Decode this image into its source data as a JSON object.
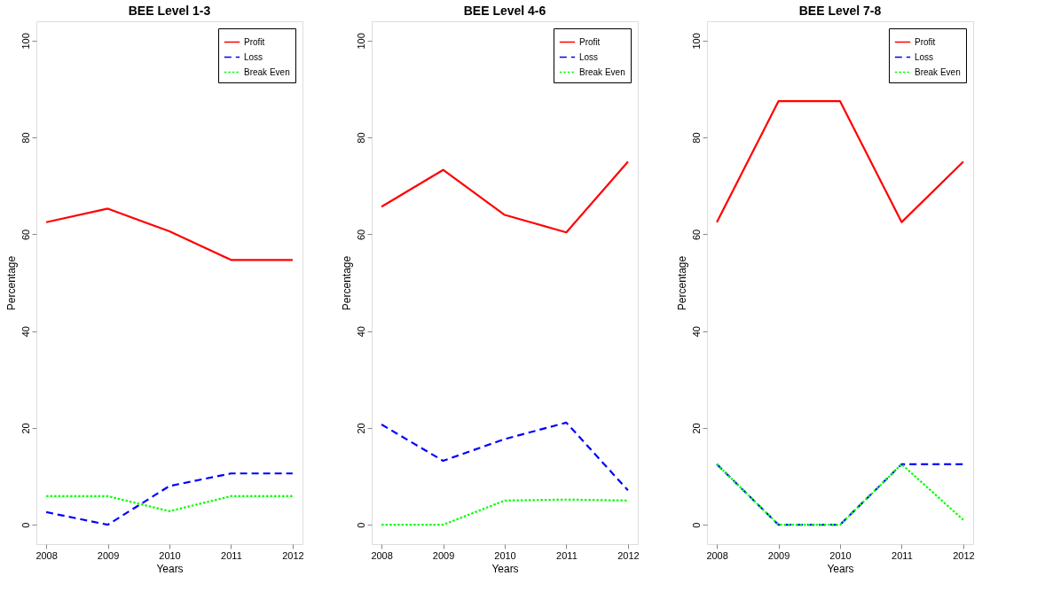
{
  "chart_data": [
    {
      "type": "line",
      "title": "BEE Level 1-3",
      "xlabel": "Years",
      "ylabel": "Percentage",
      "x": [
        2008,
        2009,
        2010,
        2011,
        2012
      ],
      "xlim": [
        2007.84,
        2012.16
      ],
      "ylim": [
        -4,
        104
      ],
      "xticks": [
        2008,
        2009,
        2010,
        2011,
        2012
      ],
      "yticks": [
        0,
        20,
        40,
        60,
        80,
        100
      ],
      "legend": "top right",
      "grid": false,
      "series": [
        {
          "name": "Profit",
          "color": "#ff0000",
          "line_style": "solid",
          "values": [
            62.5,
            65.3,
            60.6,
            54.7,
            54.7
          ]
        },
        {
          "name": "Loss",
          "color": "#0000ff",
          "line_style": "dashed",
          "values": [
            2.6,
            0,
            8.0,
            10.6,
            10.6
          ]
        },
        {
          "name": "Break Even",
          "color": "#00ff00",
          "line_style": "dotted",
          "values": [
            5.9,
            5.9,
            2.8,
            5.9,
            5.9
          ]
        }
      ]
    },
    {
      "type": "line",
      "title": "BEE Level 4-6",
      "xlabel": "Years",
      "ylabel": "Percentage",
      "x": [
        2008,
        2009,
        2010,
        2011,
        2012
      ],
      "xlim": [
        2007.84,
        2012.16
      ],
      "ylim": [
        -4,
        104
      ],
      "xticks": [
        2008,
        2009,
        2010,
        2011,
        2012
      ],
      "yticks": [
        0,
        20,
        40,
        60,
        80,
        100
      ],
      "legend": "top right",
      "grid": false,
      "series": [
        {
          "name": "Profit",
          "color": "#ff0000",
          "line_style": "solid",
          "values": [
            65.7,
            73.3,
            64.0,
            60.4,
            75.0
          ]
        },
        {
          "name": "Loss",
          "color": "#0000ff",
          "line_style": "dashed",
          "values": [
            20.7,
            13.2,
            17.7,
            21.1,
            7.1
          ]
        },
        {
          "name": "Break Even",
          "color": "#00ff00",
          "line_style": "dotted",
          "values": [
            0,
            0,
            5.0,
            5.2,
            5.0
          ]
        }
      ]
    },
    {
      "type": "line",
      "title": "BEE Level 7-8",
      "xlabel": "Years",
      "ylabel": "Percentage",
      "x": [
        2008,
        2009,
        2010,
        2011,
        2012
      ],
      "xlim": [
        2007.84,
        2012.16
      ],
      "ylim": [
        -4,
        104
      ],
      "xticks": [
        2008,
        2009,
        2010,
        2011,
        2012
      ],
      "yticks": [
        0,
        20,
        40,
        60,
        80,
        100
      ],
      "legend": "top right",
      "grid": false,
      "series": [
        {
          "name": "Profit",
          "color": "#ff0000",
          "line_style": "solid",
          "values": [
            62.5,
            87.5,
            87.5,
            62.5,
            75.0
          ]
        },
        {
          "name": "Loss",
          "color": "#0000ff",
          "line_style": "dashed",
          "values": [
            12.5,
            0,
            0,
            12.5,
            12.5
          ]
        },
        {
          "name": "Break Even",
          "color": "#00ff00",
          "line_style": "dotted",
          "values": [
            12.5,
            0,
            0,
            12.5,
            1.0
          ]
        }
      ]
    }
  ]
}
